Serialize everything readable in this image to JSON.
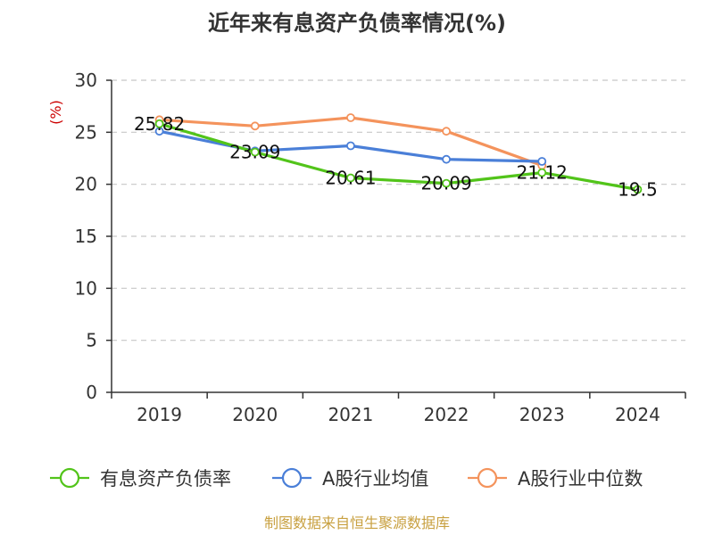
{
  "chart_data": {
    "type": "line",
    "title": "近年来有息资产负债率情况(%)",
    "ylabel": "(%)",
    "xlabel": "",
    "categories": [
      "2019",
      "2020",
      "2021",
      "2022",
      "2023",
      "2024"
    ],
    "ylim": [
      0,
      30
    ],
    "yticks": [
      0,
      5,
      10,
      15,
      20,
      25,
      30
    ],
    "grid": true,
    "legend_position": "bottom",
    "series": [
      {
        "name": "有息资产负债率",
        "color": "#52c41a",
        "values": [
          25.82,
          23.09,
          20.61,
          20.09,
          21.12,
          19.5
        ],
        "labels": [
          "25.82",
          "23.09",
          "20.61",
          "20.09",
          "21.12",
          "19.5"
        ]
      },
      {
        "name": "A股行业均值",
        "color": "#4a7fd8",
        "values": [
          25.1,
          23.2,
          23.7,
          22.4,
          22.2,
          null
        ]
      },
      {
        "name": "A股行业中位数",
        "color": "#f4935c",
        "values": [
          26.2,
          25.6,
          26.4,
          25.1,
          21.8,
          null
        ]
      }
    ],
    "source": "制图数据来自恒生聚源数据库"
  }
}
